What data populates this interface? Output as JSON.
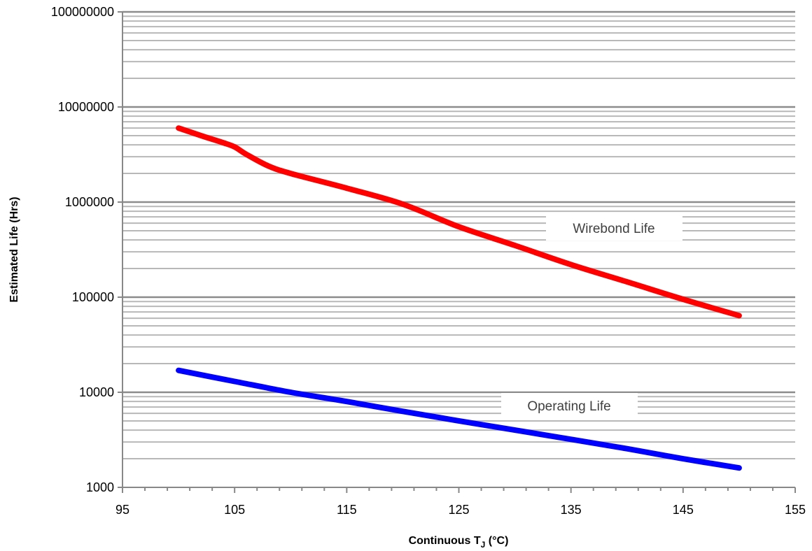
{
  "chart_data": {
    "type": "line",
    "xlabel": "Continuous T",
    "xlabel_sub": "J",
    "xlabel_unit": " (°C)",
    "ylabel": "Estimated Life (Hrs)",
    "xlim": [
      95,
      155
    ],
    "x_ticks": [
      95,
      105,
      115,
      125,
      135,
      145,
      155
    ],
    "ylim": [
      1000,
      100000000
    ],
    "y_scale": "log",
    "y_ticks": [
      1000,
      10000,
      100000,
      1000000,
      10000000,
      100000000
    ],
    "y_tick_labels": [
      "1000",
      "10000",
      "100000",
      "1000000",
      "10000000",
      "100000000"
    ],
    "grid": true,
    "series": [
      {
        "name": "Wirebond Life",
        "color": "#ff0000",
        "x": [
          100,
          102,
          104,
          105,
          106,
          108,
          110,
          115,
          120,
          125,
          130,
          135,
          140,
          145,
          150
        ],
        "y": [
          6000000,
          5000000,
          4200000,
          3800000,
          3200000,
          2400000,
          2000000,
          1400000,
          950000,
          550000,
          350000,
          220000,
          145000,
          95000,
          64000
        ]
      },
      {
        "name": "Operating Life",
        "color": "#0000ff",
        "x": [
          100,
          105,
          110,
          115,
          120,
          125,
          130,
          135,
          140,
          145,
          150
        ],
        "y": [
          17000,
          13000,
          10000,
          8000,
          6300,
          5000,
          4000,
          3200,
          2550,
          2000,
          1600
        ]
      }
    ]
  }
}
